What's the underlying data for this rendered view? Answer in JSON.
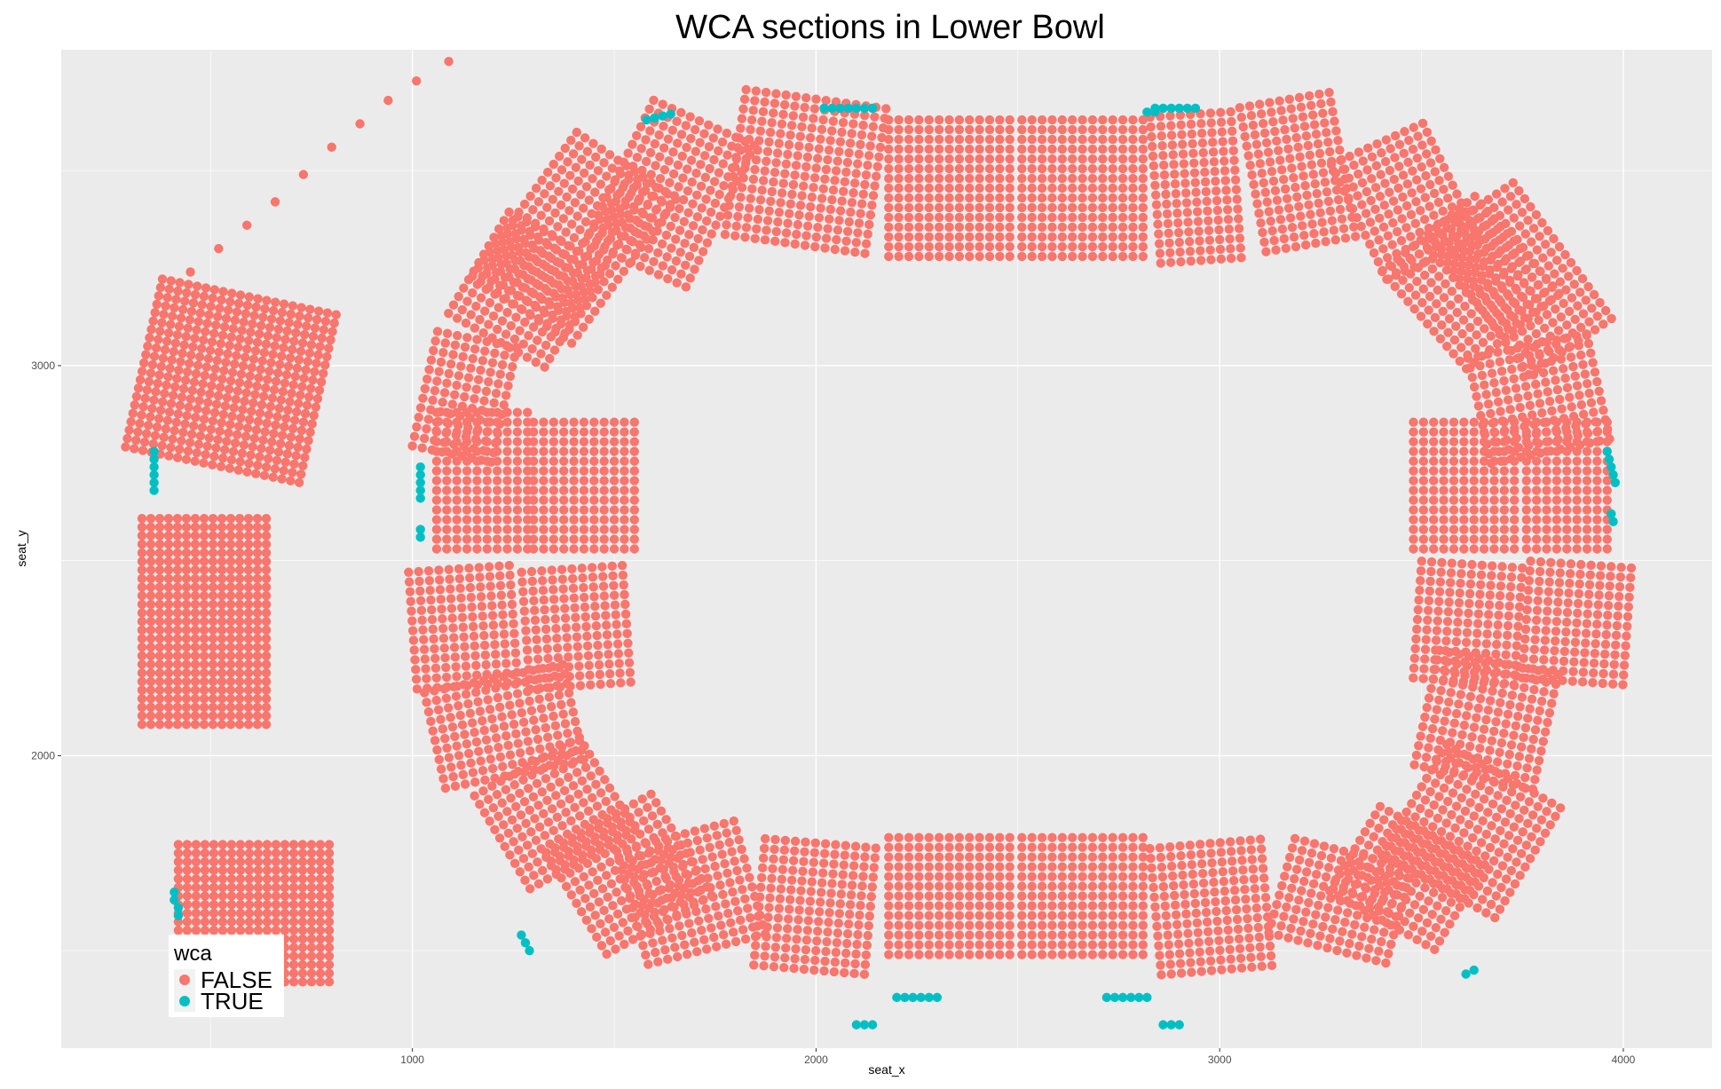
{
  "chart_data": {
    "type": "scatter",
    "title": "WCA sections in Lower Bowl",
    "xlabel": "seat_x",
    "ylabel": "seat_y",
    "xlim": [
      130,
      4220
    ],
    "ylim": [
      1250,
      3810
    ],
    "x_ticks": [
      1000,
      2000,
      3000,
      4000
    ],
    "y_ticks": [
      2000,
      3000
    ],
    "x_tick_labels": [
      "1000",
      "2000",
      "3000",
      "4000"
    ],
    "y_tick_labels": [
      "2000",
      "3000"
    ],
    "grid": true,
    "legend": {
      "title": "wca",
      "position": "bottom-left",
      "entries": [
        {
          "label": "FALSE",
          "color": "#F8766D"
        },
        {
          "label": "TRUE",
          "color": "#00BFC4"
        }
      ]
    },
    "note": "points are approximate seat positions grouped into rectangular/rotated blocks",
    "false_blocks": [
      {
        "x0": 1800,
        "x1": 2150,
        "y0": 3310,
        "y1": 3700,
        "dx": 25,
        "dy": 25,
        "rot": -8
      },
      {
        "x0": 2180,
        "x1": 2490,
        "y0": 3280,
        "y1": 3640,
        "dx": 25,
        "dy": 25,
        "rot": 0
      },
      {
        "x0": 2510,
        "x1": 2810,
        "y0": 3280,
        "y1": 3640,
        "dx": 25,
        "dy": 25,
        "rot": 0
      },
      {
        "x0": 2840,
        "x1": 3060,
        "y0": 3270,
        "y1": 3660,
        "dx": 25,
        "dy": 25,
        "rot": 4
      },
      {
        "x0": 3080,
        "x1": 3320,
        "y0": 3310,
        "y1": 3690,
        "dx": 25,
        "dy": 25,
        "rot": 10
      },
      {
        "x0": 3330,
        "x1": 3590,
        "y0": 3260,
        "y1": 3600,
        "dx": 25,
        "dy": 25,
        "rot": 25
      },
      {
        "x0": 3470,
        "x1": 3770,
        "y0": 3050,
        "y1": 3380,
        "dx": 25,
        "dy": 25,
        "rot": 40
      },
      {
        "x0": 3620,
        "x1": 3870,
        "y0": 3010,
        "y1": 3440,
        "dx": 25,
        "dy": 25,
        "rot": 35
      },
      {
        "x0": 1500,
        "x1": 1780,
        "y0": 3240,
        "y1": 3640,
        "dx": 25,
        "dy": 25,
        "rot": -25
      },
      {
        "x0": 1250,
        "x1": 1560,
        "y0": 3100,
        "y1": 3550,
        "dx": 25,
        "dy": 25,
        "rot": -35
      },
      {
        "x0": 1150,
        "x1": 1440,
        "y0": 3040,
        "y1": 3360,
        "dx": 25,
        "dy": 25,
        "rot": -30
      },
      {
        "x0": 1030,
        "x1": 1230,
        "y0": 2770,
        "y1": 3080,
        "dx": 25,
        "dy": 25,
        "rot": -12
      },
      {
        "x0": 1060,
        "x1": 1290,
        "y0": 2530,
        "y1": 2900,
        "dx": 25,
        "dy": 25,
        "rot": 0
      },
      {
        "x0": 1300,
        "x1": 1550,
        "y0": 2530,
        "y1": 2870,
        "dx": 25,
        "dy": 25,
        "rot": 0
      },
      {
        "x0": 1000,
        "x1": 1270,
        "y0": 2180,
        "y1": 2500,
        "dx": 25,
        "dy": 25,
        "rot": 4
      },
      {
        "x0": 1280,
        "x1": 1550,
        "y0": 2180,
        "y1": 2500,
        "dx": 25,
        "dy": 25,
        "rot": 4
      },
      {
        "x0": 1050,
        "x1": 1400,
        "y0": 1950,
        "y1": 2220,
        "dx": 25,
        "dy": 25,
        "rot": 12
      },
      {
        "x0": 1200,
        "x1": 1520,
        "y0": 1720,
        "y1": 2000,
        "dx": 25,
        "dy": 25,
        "rot": 30
      },
      {
        "x0": 1380,
        "x1": 1700,
        "y0": 1550,
        "y1": 1870,
        "dx": 25,
        "dy": 25,
        "rot": 30
      },
      {
        "x0": 1540,
        "x1": 1850,
        "y0": 1500,
        "y1": 1800,
        "dx": 25,
        "dy": 25,
        "rot": 15
      },
      {
        "x0": 1860,
        "x1": 2150,
        "y0": 1450,
        "y1": 1790,
        "dx": 25,
        "dy": 25,
        "rot": -5
      },
      {
        "x0": 2180,
        "x1": 2490,
        "y0": 1490,
        "y1": 1790,
        "dx": 25,
        "dy": 25,
        "rot": 0
      },
      {
        "x0": 2510,
        "x1": 2810,
        "y0": 1490,
        "y1": 1790,
        "dx": 25,
        "dy": 25,
        "rot": 0
      },
      {
        "x0": 2840,
        "x1": 3130,
        "y0": 1450,
        "y1": 1790,
        "dx": 25,
        "dy": 25,
        "rot": 5
      },
      {
        "x0": 3150,
        "x1": 3470,
        "y0": 1500,
        "y1": 1760,
        "dx": 25,
        "dy": 25,
        "rot": -15
      },
      {
        "x0": 3320,
        "x1": 3620,
        "y0": 1560,
        "y1": 1830,
        "dx": 25,
        "dy": 25,
        "rot": -30
      },
      {
        "x0": 3460,
        "x1": 3800,
        "y0": 1640,
        "y1": 1970,
        "dx": 25,
        "dy": 25,
        "rot": -30
      },
      {
        "x0": 3510,
        "x1": 3830,
        "y0": 1940,
        "y1": 2240,
        "dx": 25,
        "dy": 25,
        "rot": -12
      },
      {
        "x0": 3490,
        "x1": 3750,
        "y0": 2190,
        "y1": 2500,
        "dx": 25,
        "dy": 25,
        "rot": -4
      },
      {
        "x0": 3760,
        "x1": 4020,
        "y0": 2190,
        "y1": 2500,
        "dx": 25,
        "dy": 25,
        "rot": -4
      },
      {
        "x0": 3480,
        "x1": 3750,
        "y0": 2530,
        "y1": 2860,
        "dx": 25,
        "dy": 25,
        "rot": 0
      },
      {
        "x0": 3760,
        "x1": 3980,
        "y0": 2530,
        "y1": 2860,
        "dx": 25,
        "dy": 25,
        "rot": 0
      },
      {
        "x0": 3640,
        "x1": 3960,
        "y0": 2780,
        "y1": 3060,
        "dx": 25,
        "dy": 25,
        "rot": 12
      },
      {
        "x0": 330,
        "x1": 780,
        "y0": 2740,
        "y1": 3180,
        "dx": 22,
        "dy": 22,
        "rot": -12
      },
      {
        "x0": 330,
        "x1": 650,
        "y0": 2080,
        "y1": 2620,
        "dx": 22,
        "dy": 22,
        "rot": 0
      },
      {
        "x0": 420,
        "x1": 800,
        "y0": 1420,
        "y1": 1780,
        "dx": 22,
        "dy": 22,
        "rot": 0
      }
    ],
    "false_points_upper_left_arc": [
      [
        450,
        3240
      ],
      [
        520,
        3300
      ],
      [
        590,
        3360
      ],
      [
        660,
        3420
      ],
      [
        730,
        3490
      ],
      [
        800,
        3560
      ],
      [
        870,
        3620
      ],
      [
        940,
        3680
      ],
      [
        1010,
        3730
      ],
      [
        1090,
        3780
      ]
    ],
    "true_points": [
      [
        360,
        2760
      ],
      [
        360,
        2740
      ],
      [
        360,
        2720
      ],
      [
        360,
        2700
      ],
      [
        360,
        2680
      ],
      [
        360,
        2780
      ],
      [
        1020,
        2740
      ],
      [
        1020,
        2720
      ],
      [
        1020,
        2700
      ],
      [
        1020,
        2680
      ],
      [
        1020,
        2660
      ],
      [
        1020,
        2560
      ],
      [
        1020,
        2580
      ],
      [
        410,
        1650
      ],
      [
        410,
        1630
      ],
      [
        420,
        1610
      ],
      [
        420,
        1590
      ],
      [
        1270,
        1540
      ],
      [
        1280,
        1520
      ],
      [
        1290,
        1500
      ],
      [
        1580,
        3630
      ],
      [
        1600,
        3635
      ],
      [
        1620,
        3640
      ],
      [
        1640,
        3645
      ],
      [
        2020,
        3660
      ],
      [
        2040,
        3660
      ],
      [
        2060,
        3660
      ],
      [
        2080,
        3660
      ],
      [
        2100,
        3660
      ],
      [
        2120,
        3660
      ],
      [
        2140,
        3660
      ],
      [
        2820,
        3650
      ],
      [
        2840,
        3650
      ],
      [
        2840,
        3660
      ],
      [
        2860,
        3660
      ],
      [
        2880,
        3660
      ],
      [
        2900,
        3660
      ],
      [
        2920,
        3660
      ],
      [
        2940,
        3660
      ],
      [
        3960,
        2780
      ],
      [
        3965,
        2760
      ],
      [
        3970,
        2740
      ],
      [
        3975,
        2720
      ],
      [
        3980,
        2700
      ],
      [
        3970,
        2620
      ],
      [
        3975,
        2600
      ],
      [
        3610,
        1440
      ],
      [
        3630,
        1450
      ],
      [
        2100,
        1310
      ],
      [
        2120,
        1310
      ],
      [
        2140,
        1310
      ],
      [
        2200,
        1380
      ],
      [
        2220,
        1380
      ],
      [
        2240,
        1380
      ],
      [
        2260,
        1380
      ],
      [
        2280,
        1380
      ],
      [
        2300,
        1380
      ],
      [
        2720,
        1380
      ],
      [
        2740,
        1380
      ],
      [
        2760,
        1380
      ],
      [
        2780,
        1380
      ],
      [
        2800,
        1380
      ],
      [
        2820,
        1380
      ],
      [
        2860,
        1310
      ],
      [
        2880,
        1310
      ],
      [
        2900,
        1310
      ]
    ]
  }
}
